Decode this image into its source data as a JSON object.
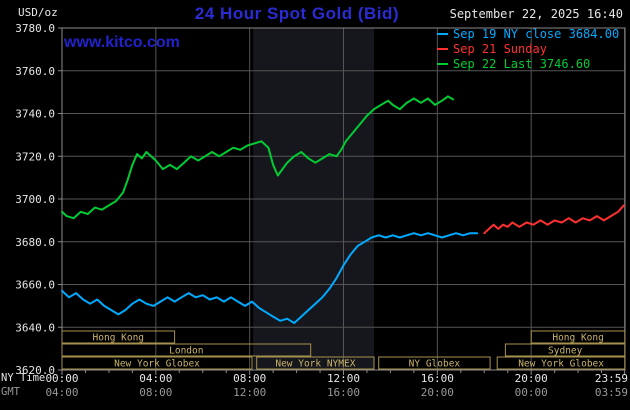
{
  "header": {
    "units_label": "USD/oz",
    "title": "24 Hour Spot Gold (Bid)",
    "datetime": "September 22, 2025 16:40",
    "watermark": "www.kitco.com"
  },
  "legend": [
    {
      "label": "Sep 19 NY close 3684.00",
      "color": "#00aaff"
    },
    {
      "label": "Sep 21 Sunday",
      "color": "#ff3030"
    },
    {
      "label": "Sep 22 Last 3746.60",
      "color": "#00cc33"
    }
  ],
  "axes": {
    "ny_time_label": "NY Time",
    "gmt_label": "GMT"
  },
  "colors": {
    "background": "#000000",
    "plot_border": "#8a8a8a",
    "grid": "#555555",
    "band": "#16161d",
    "title": "#2b2bd4",
    "watermark": "#2222cc",
    "axis_text": "#e6e6e6",
    "axis_text_dim": "#999999",
    "session_border": "#a6924e",
    "session_text": "#c9b469"
  },
  "chart_data": {
    "type": "line",
    "title": "24 Hour Spot Gold (Bid)",
    "ylabel": "USD/oz",
    "xlabel": "NY Time",
    "ylim": [
      3620,
      3780
    ],
    "x_range_hours": [
      0,
      24
    ],
    "grid": true,
    "band_hours": [
      8.15,
      13.3
    ],
    "y_ticks": [
      3620,
      3640,
      3660,
      3680,
      3700,
      3720,
      3740,
      3760,
      3780
    ],
    "x_ticks": [
      {
        "hour": 0,
        "ny": "00:00",
        "gmt": "04:00"
      },
      {
        "hour": 4,
        "ny": "04:00",
        "gmt": "08:00"
      },
      {
        "hour": 8,
        "ny": "08:00",
        "gmt": "12:00"
      },
      {
        "hour": 12,
        "ny": "12:00",
        "gmt": "16:00"
      },
      {
        "hour": 16,
        "ny": "16:00",
        "gmt": "20:00"
      },
      {
        "hour": 20,
        "ny": "20:00",
        "gmt": "00:00"
      },
      {
        "hour": 23.983,
        "ny": "23:59",
        "gmt": "03:59"
      }
    ],
    "session_rows": [
      {
        "boxes": [
          {
            "label": "Hong Kong",
            "start_hour": 0,
            "end_hour": 4.8
          },
          {
            "label": "Hong Kong",
            "start_hour": 20,
            "end_hour": 24
          }
        ]
      },
      {
        "boxes": [
          {
            "label": "London",
            "start_hour": 0,
            "end_hour": 10.6
          },
          {
            "label": "Sydney",
            "start_hour": 18.9,
            "end_hour": 24
          }
        ]
      },
      {
        "boxes": [
          {
            "label": "New York Globex",
            "start_hour": 0,
            "end_hour": 8.1
          },
          {
            "label": "New York NYMEX",
            "start_hour": 8.3,
            "end_hour": 13.3
          },
          {
            "label": "NY Globex",
            "start_hour": 13.5,
            "end_hour": 18.25
          },
          {
            "label": "New York Globex",
            "start_hour": 18.55,
            "end_hour": 24
          }
        ]
      }
    ],
    "series": [
      {
        "id": "sep19",
        "name": "Sep 19 NY close 3684.00",
        "color": "#00aaff",
        "points": [
          [
            0,
            3657
          ],
          [
            0.3,
            3654
          ],
          [
            0.6,
            3656
          ],
          [
            0.9,
            3653
          ],
          [
            1.2,
            3651
          ],
          [
            1.5,
            3653
          ],
          [
            1.8,
            3650
          ],
          [
            2.1,
            3648
          ],
          [
            2.4,
            3646
          ],
          [
            2.7,
            3648
          ],
          [
            3,
            3651
          ],
          [
            3.3,
            3653
          ],
          [
            3.6,
            3651
          ],
          [
            3.9,
            3650
          ],
          [
            4.2,
            3652
          ],
          [
            4.5,
            3654
          ],
          [
            4.8,
            3652
          ],
          [
            5.1,
            3654
          ],
          [
            5.4,
            3656
          ],
          [
            5.7,
            3654
          ],
          [
            6,
            3655
          ],
          [
            6.3,
            3653
          ],
          [
            6.6,
            3654
          ],
          [
            6.9,
            3652
          ],
          [
            7.2,
            3654
          ],
          [
            7.5,
            3652
          ],
          [
            7.8,
            3650
          ],
          [
            8.1,
            3652
          ],
          [
            8.4,
            3649
          ],
          [
            8.7,
            3647
          ],
          [
            9,
            3645
          ],
          [
            9.3,
            3643
          ],
          [
            9.6,
            3644
          ],
          [
            9.9,
            3642
          ],
          [
            10.2,
            3645
          ],
          [
            10.5,
            3648
          ],
          [
            10.8,
            3651
          ],
          [
            11.1,
            3654
          ],
          [
            11.4,
            3658
          ],
          [
            11.7,
            3663
          ],
          [
            12,
            3669
          ],
          [
            12.3,
            3674
          ],
          [
            12.6,
            3678
          ],
          [
            12.9,
            3680
          ],
          [
            13.2,
            3682
          ],
          [
            13.5,
            3683
          ],
          [
            13.8,
            3682
          ],
          [
            14.1,
            3683
          ],
          [
            14.4,
            3682
          ],
          [
            14.7,
            3683
          ],
          [
            15,
            3684
          ],
          [
            15.3,
            3683
          ],
          [
            15.6,
            3684
          ],
          [
            15.9,
            3683
          ],
          [
            16.2,
            3682
          ],
          [
            16.5,
            3683
          ],
          [
            16.8,
            3684
          ],
          [
            17.1,
            3683
          ],
          [
            17.4,
            3684
          ],
          [
            17.7,
            3684
          ]
        ]
      },
      {
        "id": "sep21",
        "name": "Sep 21 Sunday",
        "color": "#ff3030",
        "points": [
          [
            18,
            3684
          ],
          [
            18.2,
            3686
          ],
          [
            18.4,
            3688
          ],
          [
            18.6,
            3686
          ],
          [
            18.8,
            3688
          ],
          [
            19,
            3687
          ],
          [
            19.2,
            3689
          ],
          [
            19.5,
            3687
          ],
          [
            19.8,
            3689
          ],
          [
            20.1,
            3688
          ],
          [
            20.4,
            3690
          ],
          [
            20.7,
            3688
          ],
          [
            21,
            3690
          ],
          [
            21.3,
            3689
          ],
          [
            21.6,
            3691
          ],
          [
            21.9,
            3689
          ],
          [
            22.2,
            3691
          ],
          [
            22.5,
            3690
          ],
          [
            22.8,
            3692
          ],
          [
            23.1,
            3690
          ],
          [
            23.4,
            3692
          ],
          [
            23.7,
            3694
          ],
          [
            23.95,
            3697
          ]
        ]
      },
      {
        "id": "sep22",
        "name": "Sep 22 Last 3746.60",
        "color": "#00cc33",
        "points": [
          [
            0,
            3694
          ],
          [
            0.2,
            3692
          ],
          [
            0.5,
            3691
          ],
          [
            0.8,
            3694
          ],
          [
            1.1,
            3693
          ],
          [
            1.4,
            3696
          ],
          [
            1.7,
            3695
          ],
          [
            2,
            3697
          ],
          [
            2.3,
            3699
          ],
          [
            2.6,
            3703
          ],
          [
            2.8,
            3709
          ],
          [
            3,
            3716
          ],
          [
            3.2,
            3721
          ],
          [
            3.4,
            3719
          ],
          [
            3.6,
            3722
          ],
          [
            3.8,
            3720
          ],
          [
            4,
            3718
          ],
          [
            4.3,
            3714
          ],
          [
            4.6,
            3716
          ],
          [
            4.9,
            3714
          ],
          [
            5.2,
            3717
          ],
          [
            5.5,
            3720
          ],
          [
            5.8,
            3718
          ],
          [
            6.1,
            3720
          ],
          [
            6.4,
            3722
          ],
          [
            6.7,
            3720
          ],
          [
            7,
            3722
          ],
          [
            7.3,
            3724
          ],
          [
            7.6,
            3723
          ],
          [
            7.9,
            3725
          ],
          [
            8.2,
            3726
          ],
          [
            8.5,
            3727
          ],
          [
            8.8,
            3724
          ],
          [
            9,
            3716
          ],
          [
            9.2,
            3711
          ],
          [
            9.4,
            3714
          ],
          [
            9.6,
            3717
          ],
          [
            9.9,
            3720
          ],
          [
            10.2,
            3722
          ],
          [
            10.5,
            3719
          ],
          [
            10.8,
            3717
          ],
          [
            11.1,
            3719
          ],
          [
            11.4,
            3721
          ],
          [
            11.7,
            3720
          ],
          [
            11.9,
            3723
          ],
          [
            12.1,
            3727
          ],
          [
            12.4,
            3731
          ],
          [
            12.7,
            3735
          ],
          [
            13,
            3739
          ],
          [
            13.3,
            3742
          ],
          [
            13.6,
            3744
          ],
          [
            13.9,
            3746
          ],
          [
            14.1,
            3744
          ],
          [
            14.4,
            3742
          ],
          [
            14.7,
            3745
          ],
          [
            15,
            3747
          ],
          [
            15.3,
            3745
          ],
          [
            15.6,
            3747
          ],
          [
            15.9,
            3744
          ],
          [
            16.2,
            3746
          ],
          [
            16.45,
            3748
          ],
          [
            16.67,
            3746.6
          ]
        ]
      }
    ]
  }
}
